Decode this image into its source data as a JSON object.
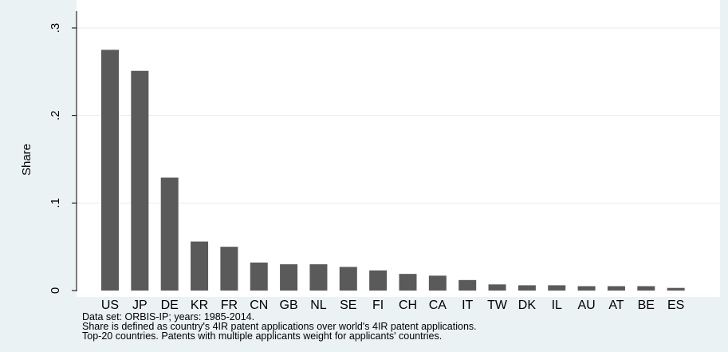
{
  "chart_data": {
    "type": "bar",
    "ylabel": "Share",
    "ylim": [
      0,
      0.3
    ],
    "yticks": [
      {
        "value": 0,
        "label": "0"
      },
      {
        "value": 0.1,
        "label": ".1"
      },
      {
        "value": 0.2,
        "label": ".2"
      },
      {
        "value": 0.3,
        "label": ".3"
      }
    ],
    "categories": [
      "US",
      "JP",
      "DE",
      "KR",
      "FR",
      "CN",
      "GB",
      "NL",
      "SE",
      "FI",
      "CH",
      "CA",
      "IT",
      "TW",
      "DK",
      "IL",
      "AU",
      "AT",
      "BE",
      "ES"
    ],
    "values": [
      0.275,
      0.251,
      0.129,
      0.056,
      0.05,
      0.032,
      0.03,
      0.03,
      0.027,
      0.023,
      0.019,
      0.017,
      0.012,
      0.007,
      0.006,
      0.006,
      0.005,
      0.005,
      0.005,
      0.003
    ],
    "grid": true,
    "colors": {
      "bar": "#5a5a5a",
      "background": "#eaf2f3",
      "plot": "#ffffff",
      "grid": "#e6eef0"
    }
  },
  "notes": [
    "Data set: ORBIS-IP; years: 1985-2014.",
    "Share is defined as country's 4IR patent applications over world's 4IR patent applications.",
    "Top-20 countries. Patents with multiple applicants weight for applicants' countries."
  ]
}
